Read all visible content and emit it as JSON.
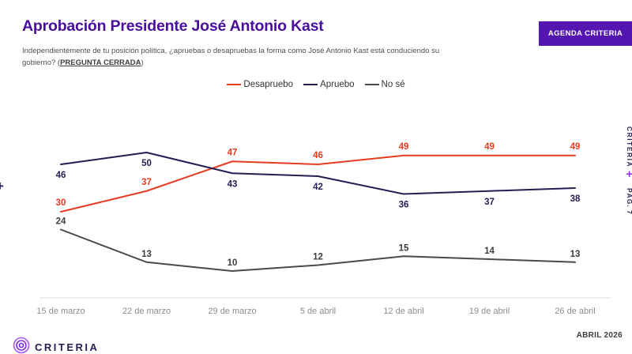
{
  "header": {
    "title": "Aprobación Presidente José Antonio Kast",
    "question_prefix": "Independientemente de tu posición política, ¿apruebas o desapruebas la forma como José Antonio Kast está conduciendo su gobierno? (",
    "question_emphasis": "PREGUNTA CERRADA",
    "question_suffix": ")",
    "agenda_button": "AGENDA CRITERIA"
  },
  "chart_data": {
    "type": "line",
    "title": "Aprobación Presidente José Antonio Kast",
    "categories": [
      "15 de marzo",
      "22 de marzo",
      "29 de marzo",
      "5 de abril",
      "12 de abril",
      "19 de abril",
      "26 de abril"
    ],
    "series": [
      {
        "name": "Desapruebo",
        "color": "#e63b21",
        "values": [
          30,
          37,
          47,
          46,
          49,
          49,
          49
        ]
      },
      {
        "name": "Apruebo",
        "color": "#231d53",
        "values": [
          46,
          50,
          43,
          42,
          36,
          37,
          38
        ]
      },
      {
        "name": "No sé",
        "color": "#4a4a4a",
        "label_color": "#3d3d3d",
        "values": [
          24,
          13,
          10,
          12,
          15,
          14,
          13
        ]
      }
    ],
    "ylim": [
      0,
      55
    ],
    "grid": false,
    "legend_position": "top",
    "data_labels": true,
    "xlabel": "",
    "ylabel": ""
  },
  "side": {
    "left_plus": "+",
    "right_brand": "CRITERIA",
    "right_plus": "+",
    "page_label": "PÁG. 7"
  },
  "footer": {
    "date_label": "ABRIL 2026",
    "brand": "CRITERIA"
  },
  "colors": {
    "accent_purple": "#4a0e9d",
    "button_purple": "#5415b0",
    "desapruebo_red": "#e63b21",
    "apruebo_navy": "#231d53",
    "nose_gray": "#4a4a4a",
    "axis_gray": "#dcdcdc",
    "tick_gray": "#8c8c8c"
  }
}
